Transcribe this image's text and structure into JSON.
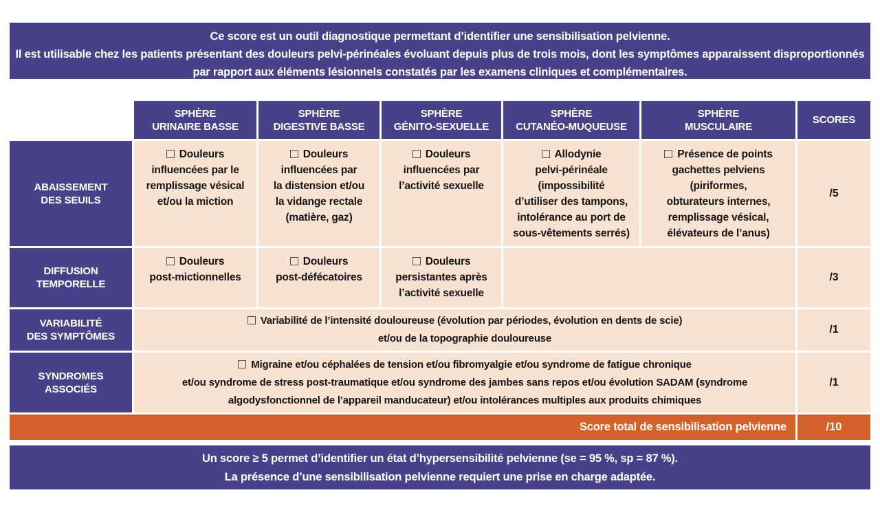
{
  "colors": {
    "purple": "#464189",
    "peach": "#f8e3d3",
    "orange": "#d2622a"
  },
  "top_banner": {
    "line1": "Ce score est un outil diagnostique permettant d’identifier une sensibilisation pelvienne.",
    "line2": "Il est utilisable chez les patients présentant des douleurs pelvi-périnéales évoluant depuis plus de trois mois, dont les symptômes apparaissent disproportionnés par rapport aux éléments lésionnels constatés par les examens cliniques et complémentaires."
  },
  "table": {
    "headers": [
      "SPHÈRE\nURINAIRE BASSE",
      "SPHÈRE\nDIGESTIVE BASSE",
      "SPHÈRE\nGÉNITO-SEXUELLE",
      "SPHÈRE\nCUTANÉO-MUQUEUSE",
      "SPHÈRE\nMUSCULAIRE",
      "SCORES"
    ],
    "row_headers": [
      "ABAISSEMENT\nDES SEUILS",
      "DIFFUSION\nTEMPORELLE",
      "VARIABILITÉ\nDES SYMPTÔMES",
      "SYNDROMES\nASSOCIÉS"
    ],
    "rows": {
      "abaissement": {
        "cells": [
          "Douleurs\ninfluencées par le\nremplissage vésical\net/ou la miction",
          "Douleurs\ninfluencées par\nla distension et/ou\nla vidange rectale\n(matière, gaz)",
          "Douleurs\ninfluencées par\nl’activité sexuelle",
          "Allodynie\npelvi-périnéale\n(impossibilité\nd’utiliser des tampons,\nintolérance au port de\nsous-vêtements serrés)",
          "Présence de points\ngachettes pelviens\n(piriformes,\nobturateurs internes,\nremplissage vésical,\nélévateurs de l’anus)"
        ],
        "score": "/5"
      },
      "diffusion": {
        "cells": [
          "Douleurs\npost-mictionnelles",
          "Douleurs\npost-défécatoires",
          "Douleurs\npersistantes après\nl’activité sexuelle"
        ],
        "score": "/3"
      },
      "variabilite": {
        "cell": "Variabilité de l’intensité douloureuse (évolution par périodes, évolution en dents de scie)\net/ou de la topographie douloureuse",
        "score": "/1"
      },
      "syndromes": {
        "cell": "Migraine et/ou céphalées de tension et/ou fibromyalgie et/ou syndrome de fatigue chronique\net/ou syndrome de stress post-traumatique et/ou syndrome des jambes sans repos et/ou évolution SADAM (syndrome\nalgodysfonctionnel de l’appareil manducateur) et/ou intolérances multiples aux produits chimiques",
        "score": "/1"
      }
    },
    "total": {
      "label": "Score total de sensibilisation pelvienne",
      "score": "/10"
    }
  },
  "bottom_banner": {
    "line1": "Un score ≥ 5 permet d’identifier un état d’hypersensibilité pelvienne (se = 95 %, sp = 87 %).",
    "line2": "La présence d’une sensibilisation pelvienne requiert une prise en charge adaptée."
  }
}
